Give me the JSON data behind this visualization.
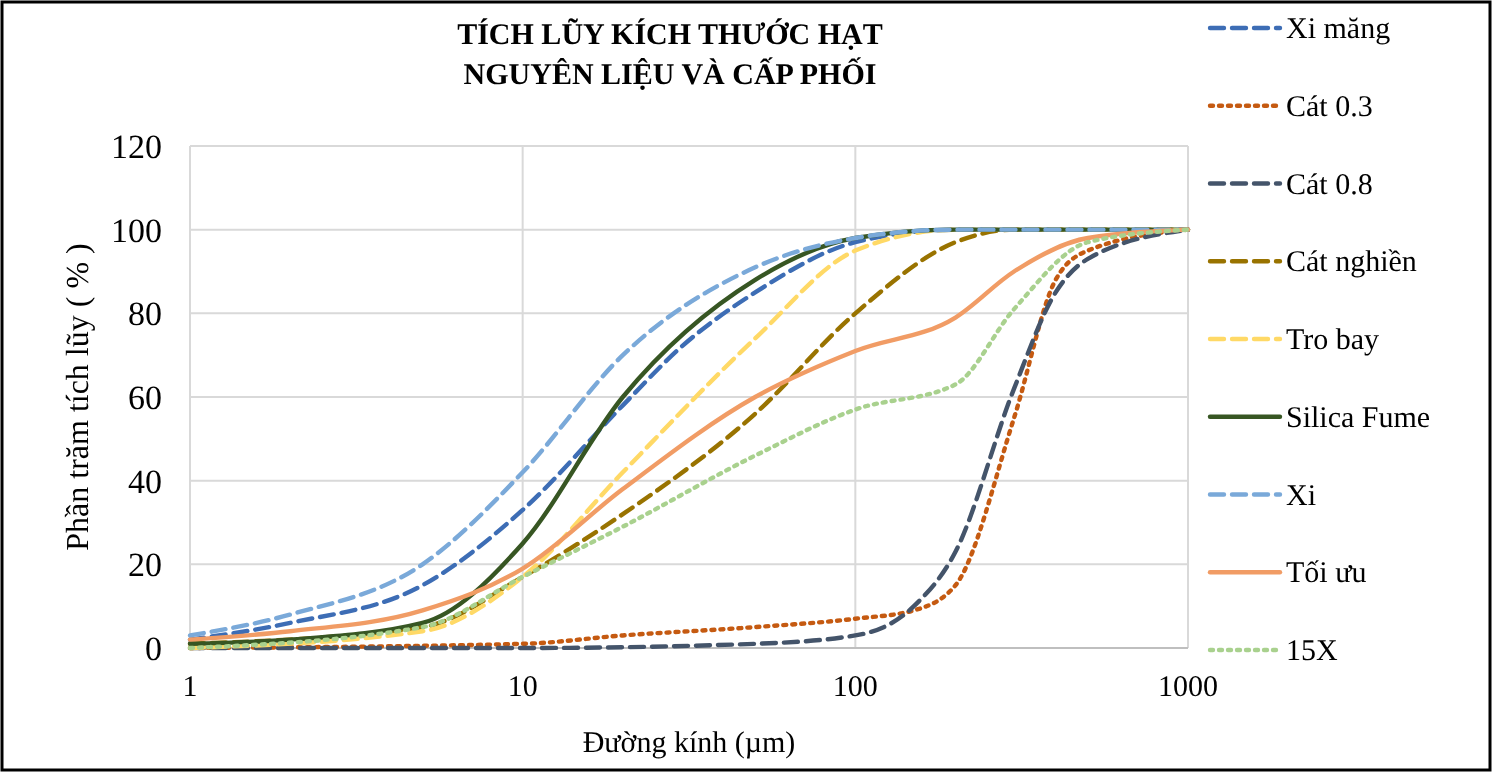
{
  "chart_data": {
    "type": "line",
    "title": "TÍCH LŨY KÍCH THƯỚC HẠT\nNGUYÊN LIỆU VÀ CẤP PHỐI",
    "xlabel": "Đường kính (µm)",
    "ylabel": "Phần trăm tích lũy ( % )",
    "log": "x",
    "xlim": [
      1,
      1000
    ],
    "xticks": [
      1,
      10,
      100,
      1000
    ],
    "ylim": [
      0,
      120
    ],
    "yticks": [
      0,
      20,
      40,
      60,
      80,
      100,
      120
    ],
    "grid": true,
    "legend": "right",
    "series": [
      {
        "name": "Xi măng",
        "color": "#3d6db5",
        "line_style": "dashed",
        "x": [
          1,
          2,
          5,
          10,
          20,
          30,
          50,
          100,
          200,
          1000
        ],
        "values": [
          2,
          6,
          15,
          33,
          58,
          72,
          85,
          97,
          100,
          100
        ]
      },
      {
        "name": "Cát 0.3",
        "color": "#c55a11",
        "line_style": "dotted",
        "x": [
          1,
          10,
          20,
          50,
          100,
          150,
          200,
          300,
          400,
          500,
          1000
        ],
        "values": [
          0,
          1,
          3,
          5,
          7,
          9,
          15,
          55,
          88,
          95,
          100
        ]
      },
      {
        "name": "Cát 0.8",
        "color": "#44546a",
        "line_style": "dashed",
        "x": [
          1,
          10,
          50,
          100,
          150,
          200,
          300,
          400,
          500,
          1000
        ],
        "values": [
          0,
          0,
          1,
          3,
          10,
          23,
          62,
          85,
          93,
          100
        ]
      },
      {
        "name": "Cát nghiền",
        "color": "#997300",
        "line_style": "dashed",
        "x": [
          1,
          5,
          10,
          20,
          50,
          100,
          200,
          300,
          1000
        ],
        "values": [
          1,
          5,
          17,
          32,
          56,
          80,
          97,
          100,
          100
        ]
      },
      {
        "name": "Tro bay",
        "color": "#ffd966",
        "line_style": "dashed",
        "x": [
          1,
          5,
          10,
          20,
          50,
          100,
          200,
          1000
        ],
        "values": [
          0,
          4,
          17,
          42,
          74,
          95,
          100,
          100
        ]
      },
      {
        "name": "Silica Fume",
        "color": "#375623",
        "line_style": "solid",
        "x": [
          1,
          2,
          5,
          10,
          20,
          50,
          100,
          200,
          1000
        ],
        "values": [
          1,
          2,
          6,
          25,
          60,
          88,
          98,
          100,
          100
        ]
      },
      {
        "name": "Xi",
        "color": "#7aa9d9",
        "line_style": "dashed",
        "x": [
          1,
          2,
          5,
          10,
          20,
          50,
          100,
          200,
          1000
        ],
        "values": [
          3,
          8,
          20,
          42,
          70,
          91,
          98,
          100,
          100
        ]
      },
      {
        "name": "Tối ưu",
        "color": "#f19c65",
        "line_style": "solid",
        "x": [
          1,
          2,
          5,
          10,
          20,
          50,
          100,
          200,
          300,
          500,
          1000
        ],
        "values": [
          2,
          4,
          9,
          19,
          38,
          60,
          71,
          79,
          90,
          98,
          100
        ]
      },
      {
        "name": "15X",
        "color": "#a9d18e",
        "line_style": "dotted",
        "x": [
          1,
          5,
          10,
          20,
          50,
          100,
          200,
          300,
          500,
          1000
        ],
        "values": [
          0,
          5,
          17,
          29,
          46,
          57,
          63,
          81,
          97,
          100
        ]
      }
    ]
  }
}
